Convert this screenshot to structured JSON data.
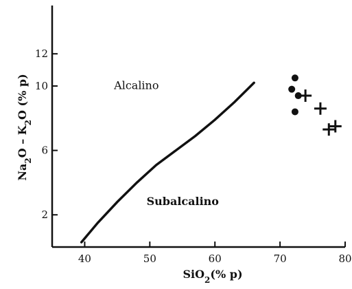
{
  "chart_data": {
    "type": "scatter",
    "title": "",
    "xlabel": "SiO₂(% p)",
    "ylabel": "Na₂O – K₂O (% p)",
    "xlim": [
      35,
      80
    ],
    "ylim": [
      0,
      15
    ],
    "x_ticks": [
      40,
      50,
      60,
      70,
      80
    ],
    "x_tick_labels": [
      "40",
      "50",
      "60",
      "70",
      "80"
    ],
    "y_ticks": [
      2,
      6,
      10,
      12
    ],
    "y_tick_labels": [
      "2",
      "6",
      "10",
      "12"
    ],
    "grid": false,
    "boundary_line": {
      "x": [
        39.5,
        42,
        45,
        48,
        51,
        54,
        57,
        60,
        63,
        66
      ],
      "y": [
        0.3,
        1.5,
        2.8,
        4.0,
        5.1,
        6.0,
        6.9,
        7.9,
        9.0,
        10.2
      ]
    },
    "regions": [
      {
        "label": "Alcalino",
        "x": 44.5,
        "y": 9.8,
        "bold": false
      },
      {
        "label": "Subalcalino",
        "x": 49.5,
        "y": 2.6,
        "bold": true
      }
    ],
    "series": [
      {
        "marker": "circle",
        "points": [
          {
            "x": 72.3,
            "y": 10.5
          },
          {
            "x": 71.8,
            "y": 9.8
          },
          {
            "x": 72.8,
            "y": 9.4
          },
          {
            "x": 72.3,
            "y": 8.4
          }
        ]
      },
      {
        "marker": "plus",
        "points": [
          {
            "x": 73.9,
            "y": 9.4
          },
          {
            "x": 76.2,
            "y": 8.6
          },
          {
            "x": 77.5,
            "y": 7.3
          },
          {
            "x": 78.5,
            "y": 7.5
          }
        ]
      }
    ],
    "colors": {
      "ink": "#111111"
    }
  }
}
